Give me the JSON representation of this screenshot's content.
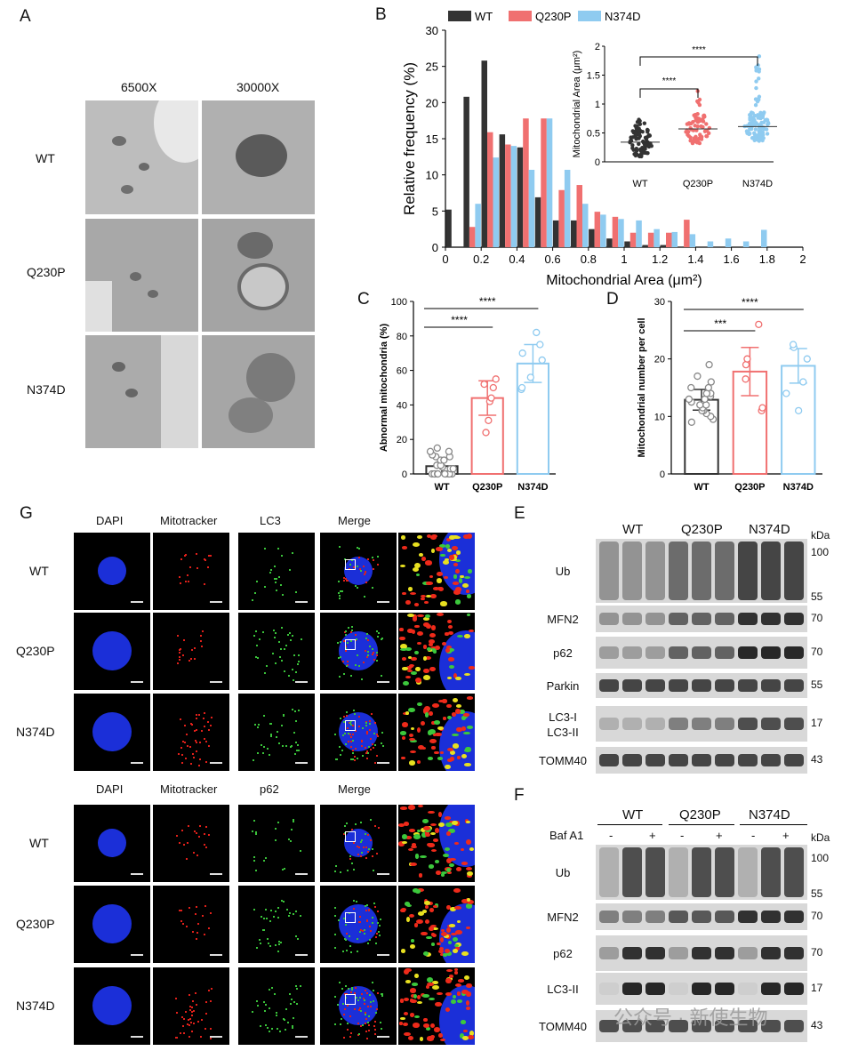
{
  "panels": {
    "A": "A",
    "B": "B",
    "C": "C",
    "D": "D",
    "E": "E",
    "F": "F",
    "G": "G"
  },
  "panelA": {
    "col_headers": [
      "6500X",
      "30000X"
    ],
    "row_labels": [
      "WT",
      "Q230P",
      "N374D"
    ]
  },
  "panelG": {
    "top_headers": [
      "DAPI",
      "Mitotracker",
      "LC3",
      "Merge"
    ],
    "bottom_headers": [
      "DAPI",
      "Mitotracker",
      "p62",
      "Merge"
    ],
    "row_labels": [
      "WT",
      "Q230P",
      "N374D"
    ]
  },
  "panelE": {
    "groups": [
      "WT",
      "Q230P",
      "N374D"
    ],
    "kda_label": "kDa",
    "blots": [
      {
        "label": "Ub",
        "markers": [
          "100",
          "55"
        ]
      },
      {
        "label": "MFN2",
        "markers": [
          "70"
        ]
      },
      {
        "label": "p62",
        "markers": [
          "70"
        ]
      },
      {
        "label": "Parkin",
        "markers": [
          "55"
        ]
      },
      {
        "label": "LC3-I\nLC3-II",
        "markers": [
          "17"
        ]
      },
      {
        "label": "TOMM40",
        "markers": [
          "43"
        ]
      }
    ]
  },
  "panelF": {
    "groups": [
      "WT",
      "Q230P",
      "N374D"
    ],
    "treatment_label": "Baf A1",
    "treatment_signs": [
      "-",
      "+",
      "-",
      "+",
      "-",
      "+"
    ],
    "kda_label": "kDa",
    "blots": [
      {
        "label": "Ub",
        "markers": [
          "100",
          "55"
        ]
      },
      {
        "label": "MFN2",
        "markers": [
          "70"
        ]
      },
      {
        "label": "p62",
        "markers": [
          "70"
        ]
      },
      {
        "label": "LC3-II",
        "markers": [
          "17"
        ]
      },
      {
        "label": "TOMM40",
        "markers": [
          "43"
        ]
      }
    ]
  },
  "watermark": "公众号 · 新使生物",
  "colors": {
    "WT": "#333333",
    "Q230P": "#f07070",
    "N374D": "#8fcbf0"
  },
  "chart_data": [
    {
      "panel": "B",
      "type": "bar",
      "legend": [
        "WT",
        "Q230P",
        "N374D"
      ],
      "legend_position": "top",
      "xlabel": "Mitochondrial Area (μm²)",
      "ylabel": "Relative frequency (%)",
      "xlim": [
        0,
        2
      ],
      "ylim": [
        0,
        30
      ],
      "xticks": [
        "0",
        "0.2",
        "0.4",
        "0.6",
        "0.8",
        "1",
        "1.2",
        "1.4",
        "1.6",
        "1.8",
        "2"
      ],
      "yticks": [
        "0",
        "5",
        "10",
        "15",
        "20",
        "25",
        "30"
      ],
      "bin_centers": [
        0.05,
        0.15,
        0.25,
        0.35,
        0.45,
        0.55,
        0.65,
        0.75,
        0.85,
        0.95,
        1.05,
        1.15,
        1.25,
        1.35,
        1.45,
        1.55,
        1.65,
        1.75
      ],
      "series": [
        {
          "name": "WT",
          "values": [
            5.2,
            20.8,
            25.8,
            15.6,
            13.8,
            6.9,
            3.7,
            3.7,
            2.5,
            1.2,
            0.8,
            0.3,
            0.3,
            0,
            0,
            0,
            0,
            0
          ]
        },
        {
          "name": "Q230P",
          "values": [
            0,
            2.8,
            15.9,
            14.2,
            17.8,
            17.8,
            7.9,
            8.6,
            4.9,
            4.2,
            2.0,
            2.0,
            2.0,
            3.8,
            0,
            0,
            0,
            0
          ]
        },
        {
          "name": "N374D",
          "values": [
            0,
            6.0,
            12.4,
            14.0,
            10.7,
            17.8,
            10.7,
            6.0,
            4.5,
            3.9,
            3.7,
            2.5,
            2.1,
            1.8,
            0.8,
            1.2,
            0.8,
            2.4
          ]
        }
      ]
    },
    {
      "panel": "B-inset",
      "type": "scatter",
      "categories": [
        "WT",
        "Q230P",
        "N374D"
      ],
      "ylabel": "Mitochondrial Area (μm²)",
      "ylim": [
        0,
        2
      ],
      "yticks": [
        "0",
        "0.5",
        "1",
        "1.5",
        "2"
      ],
      "means": [
        0.34,
        0.57,
        0.61
      ],
      "significance": [
        {
          "pair": [
            "WT",
            "Q230P"
          ],
          "label": "****"
        },
        {
          "pair": [
            "WT",
            "N374D"
          ],
          "label": "****"
        }
      ]
    },
    {
      "panel": "C",
      "type": "bar",
      "categories": [
        "WT",
        "Q230P",
        "N374D"
      ],
      "ylabel": "Abnormal mitochondria (%)",
      "ylim": [
        0,
        100
      ],
      "yticks": [
        "0",
        "20",
        "40",
        "60",
        "80",
        "100"
      ],
      "values": [
        4.5,
        44,
        64
      ],
      "sd": [
        4.5,
        10,
        11
      ],
      "points": [
        [
          0,
          0,
          0,
          0,
          0,
          0,
          0,
          0,
          0,
          0,
          0,
          3,
          3,
          4,
          5,
          5,
          8,
          8,
          10,
          10,
          11,
          13,
          13,
          15
        ],
        [
          24,
          31,
          42,
          44,
          50,
          52,
          55
        ],
        [
          49,
          50,
          56,
          66,
          70,
          75,
          82
        ]
      ],
      "significance": [
        {
          "pair": [
            "WT",
            "Q230P"
          ],
          "label": "****"
        },
        {
          "pair": [
            "WT",
            "N374D"
          ],
          "label": "****"
        }
      ]
    },
    {
      "panel": "D",
      "type": "bar",
      "categories": [
        "WT",
        "Q230P",
        "N374D"
      ],
      "ylabel": "Mitochondrial number per cell",
      "ylim": [
        0,
        30
      ],
      "yticks": [
        "0",
        "10",
        "20",
        "30"
      ],
      "values": [
        12.9,
        17.8,
        18.8
      ],
      "sd": [
        1.8,
        4.2,
        3.0
      ],
      "points": [
        [
          9,
          9.5,
          10,
          10.5,
          11,
          11,
          11.5,
          12,
          12,
          12.5,
          13,
          13,
          13.5,
          14,
          14,
          15,
          15,
          16,
          17,
          19
        ],
        [
          11,
          11.5,
          16.5,
          19,
          20,
          26
        ],
        [
          11,
          14,
          16,
          20,
          22,
          22.5
        ]
      ],
      "significance": [
        {
          "pair": [
            "WT",
            "Q230P"
          ],
          "label": "***"
        },
        {
          "pair": [
            "WT",
            "N374D"
          ],
          "label": "****"
        }
      ]
    }
  ]
}
